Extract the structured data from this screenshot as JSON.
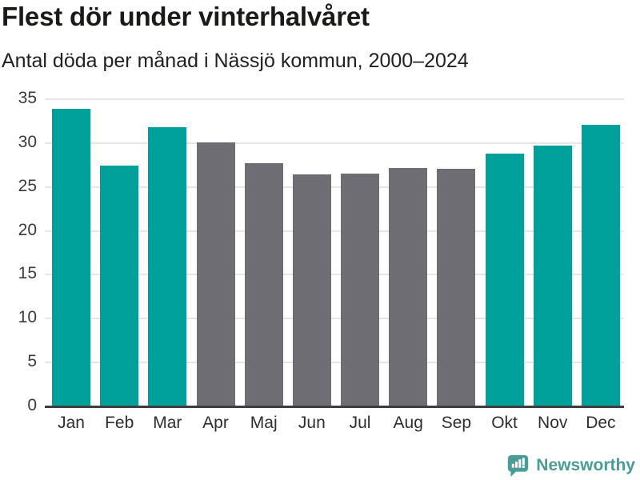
{
  "title": "Flest dör under vinterhalvåret",
  "subtitle": "Antal döda per månad i Nässjö kommun, 2000–2024",
  "branding": {
    "logo_text": "Newsworthy",
    "logo_icon": "speech-bubble-with-bar-chart-and-exclamation"
  },
  "colors": {
    "highlight_bar": "#00a19a",
    "muted_bar": "#6e6d73",
    "gridline": "#e6e6e6",
    "axis_line": "#3e3e3e",
    "tick_label": "#3b3b3b",
    "title_text": "#1a1a18",
    "logo": "#4a9c97"
  },
  "chart_data": {
    "type": "bar",
    "title": "Flest dör under vinterhalvåret",
    "subtitle": "Antal döda per månad i Nässjö kommun, 2000–2024",
    "categories": [
      "Jan",
      "Feb",
      "Mar",
      "Apr",
      "Maj",
      "Jun",
      "Jul",
      "Aug",
      "Sep",
      "Okt",
      "Nov",
      "Dec"
    ],
    "values": [
      33.9,
      27.4,
      31.8,
      30.1,
      27.7,
      26.4,
      26.5,
      27.2,
      27.1,
      28.8,
      29.7,
      32.1
    ],
    "bar_roles": [
      "highlight",
      "highlight",
      "highlight",
      "muted",
      "muted",
      "muted",
      "muted",
      "muted",
      "muted",
      "highlight",
      "highlight",
      "highlight"
    ],
    "highlighted_months": [
      "Jan",
      "Feb",
      "Mar",
      "Okt",
      "Nov",
      "Dec"
    ],
    "xlabel": "",
    "ylabel": "",
    "ylim": [
      0,
      35
    ],
    "yticks": [
      0,
      5,
      10,
      15,
      20,
      25,
      30,
      35
    ],
    "grid": "horizontal-only",
    "legend": "none"
  }
}
